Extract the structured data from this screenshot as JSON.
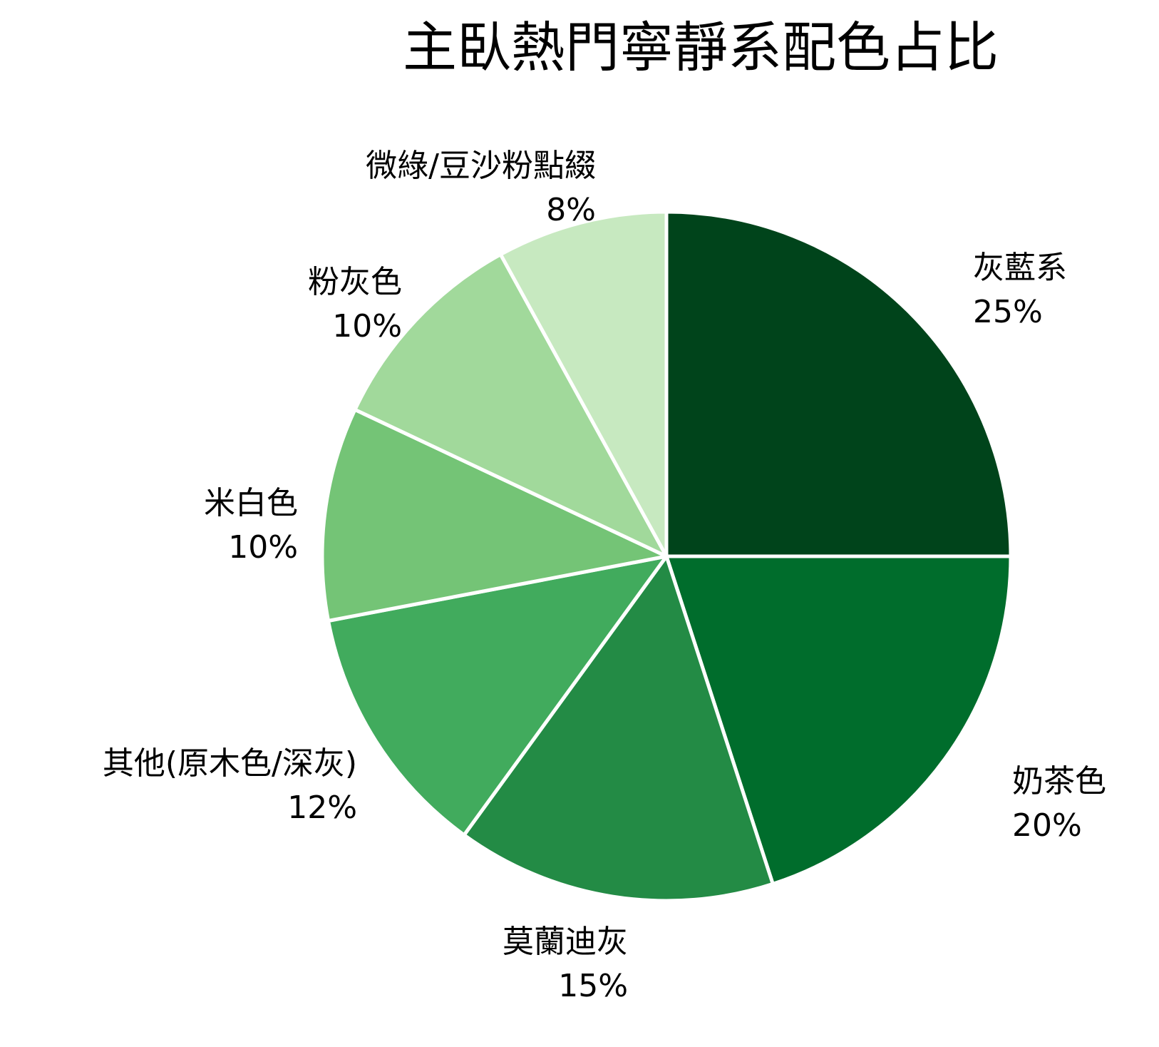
{
  "title": "主臥熱門寧靜系配色占比",
  "chart_data": {
    "type": "pie",
    "title": "主臥熱門寧靜系配色占比",
    "categories": [
      "灰藍系",
      "奶茶色",
      "莫蘭迪灰",
      "其他(原木色/深灰)",
      "米白色",
      "粉灰色",
      "微綠/豆沙粉點綴"
    ],
    "values": [
      25,
      20,
      15,
      12,
      10,
      10,
      8
    ],
    "value_labels": [
      "25%",
      "20%",
      "15%",
      "12%",
      "10%",
      "10%",
      "8%"
    ],
    "colors": [
      "#00441b",
      "#006d2c",
      "#238b45",
      "#41ab5d",
      "#74c476",
      "#a1d99b",
      "#c7e9c0"
    ],
    "start_angle": 90,
    "direction": "clockwise",
    "legend": "none",
    "labels_outside": true
  },
  "labels": [
    {
      "name": "灰藍系",
      "pct": "25%"
    },
    {
      "name": "奶茶色",
      "pct": "20%"
    },
    {
      "name": "莫蘭迪灰",
      "pct": "15%"
    },
    {
      "name": "其他(原木色/深灰)",
      "pct": "12%"
    },
    {
      "name": "米白色",
      "pct": "10%"
    },
    {
      "name": "粉灰色",
      "pct": "10%"
    },
    {
      "name": "微綠/豆沙粉點綴",
      "pct": "8%"
    }
  ]
}
